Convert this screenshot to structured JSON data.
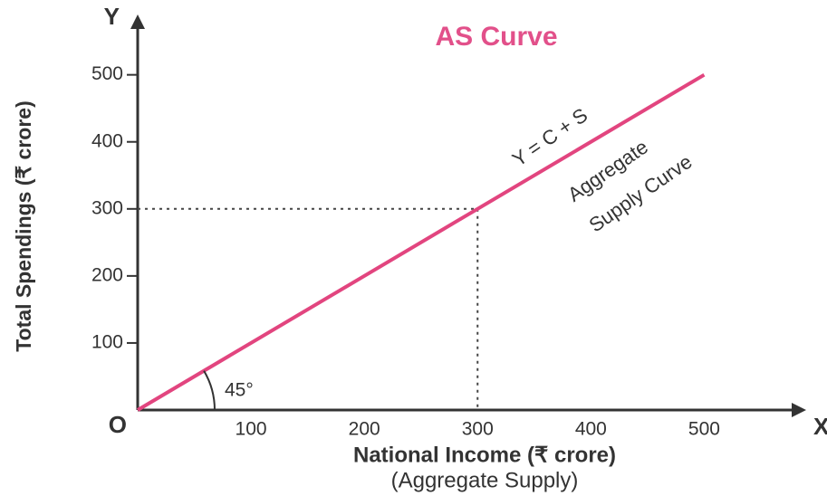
{
  "chart_data": {
    "type": "line",
    "title": "AS Curve",
    "x_label": "National Income (₹ crore)",
    "x_sublabel": "(Aggregate Supply)",
    "y_label": "Total Spendings (₹ crore)",
    "origin_label": "O",
    "x_axis_letter": "X",
    "y_axis_letter": "Y",
    "x": [
      0,
      500
    ],
    "series": [
      {
        "name": "Y = C + S",
        "color": "#e2457f",
        "values": [
          0,
          500
        ]
      }
    ],
    "annotations": [
      "Aggregate",
      "Supply Curve",
      "45°"
    ],
    "reference": {
      "x": 300,
      "y": 300
    },
    "xlim": [
      0,
      590
    ],
    "ylim": [
      0,
      590
    ],
    "xticks": [
      100,
      200,
      300,
      400,
      500
    ],
    "yticks": [
      100,
      200,
      300,
      400,
      500
    ]
  }
}
